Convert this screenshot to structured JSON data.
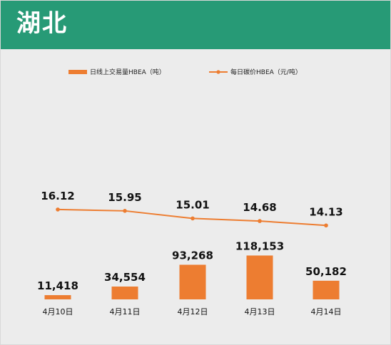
{
  "header": {
    "title": "湖北"
  },
  "colors": {
    "header_bg": "#279a76",
    "bar": "#ed7d31",
    "line": "#ed7d31",
    "panel_bg": "#ececec"
  },
  "chart_data": {
    "type": "bar+line",
    "categories": [
      "4月10日",
      "4月11日",
      "4月12日",
      "4月13日",
      "4月14日"
    ],
    "series": [
      {
        "name": "日线上交易量HBEA（吨）",
        "type": "bar",
        "values": [
          11418,
          34554,
          93268,
          118153,
          50182
        ],
        "labels": [
          "11,418",
          "34,554",
          "93,268",
          "118,153",
          "50,182"
        ]
      },
      {
        "name": "每日碳价HBEA（元/吨）",
        "type": "line",
        "values": [
          16.12,
          15.95,
          15.01,
          14.68,
          14.13
        ],
        "labels": [
          "16.12",
          "15.95",
          "15.01",
          "14.68",
          "14.13"
        ]
      }
    ],
    "legend": "top",
    "grid": false
  }
}
